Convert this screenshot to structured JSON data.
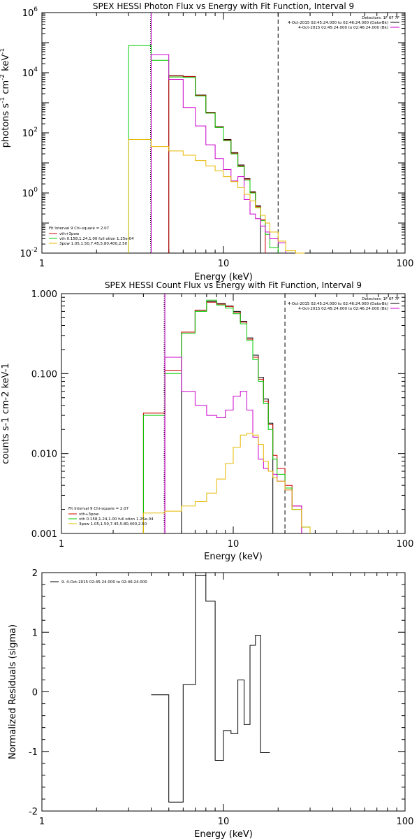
{
  "chart_data": [
    {
      "type": "line",
      "title": "SPEX HESSI Photon Flux vs Energy with Fit Function, Interval 9",
      "xlabel": "Energy (keV)",
      "ylabel_base": "photons s",
      "ylabel_exp1": "-1",
      "ylabel_mid": " cm",
      "ylabel_exp2": "-2",
      "ylabel_end": " keV",
      "ylabel_exp3": "-1",
      "xscale": "log",
      "yscale": "log",
      "xlim": [
        1,
        100
      ],
      "ylim": [
        0.01,
        1000000
      ],
      "xtick_labels": [
        {
          "v": 1,
          "t": "1"
        },
        {
          "v": 10,
          "t": "10"
        },
        {
          "v": 100,
          "t": "100"
        }
      ],
      "ytick_labels": [
        {
          "v": 0.01,
          "base": "10",
          "exp": "-2"
        },
        {
          "v": 1,
          "base": "10",
          "exp": "0"
        },
        {
          "v": 100,
          "base": "10",
          "exp": "2"
        },
        {
          "v": 10000,
          "base": "10",
          "exp": "4"
        },
        {
          "v": 1000000,
          "base": "10",
          "exp": "6"
        }
      ],
      "vlines": [
        {
          "x": 4,
          "style": "dotted"
        },
        {
          "x": 4,
          "style": "solid",
          "color": "#cc00cc"
        },
        {
          "x": 20,
          "style": "dashed"
        }
      ],
      "legend_tr": {
        "line1": "Detectors: 1F 6F 7F",
        "line2": "4-Oct-2015 02:45:24.000 to 02:46:24.000 (Data-Bk)",
        "line3": "4-Oct-2015 02:45:24.000 to 02:46:24.000 (Bk)",
        "colors": [
          "#000000",
          "#cc00cc"
        ]
      },
      "legend_bl": {
        "header": "Fit Interval 9   Chi-square = 2.07",
        "items": [
          {
            "label": "vth+3pow",
            "color": "#cc0000"
          },
          {
            "label": "vth 0.158,1.24,1.00  full otion 1.25e-04",
            "color": "#00cc00"
          },
          {
            "label": "3pow 1.05,1.50,7.45,5.80,400,2.50",
            "color": "#e6b800"
          }
        ]
      },
      "edges": [
        3,
        4,
        5,
        6,
        7,
        8,
        9,
        10,
        11,
        12,
        13,
        14,
        15,
        16,
        17,
        18,
        20,
        22,
        25,
        28
      ],
      "series": [
        {
          "color": "#000000",
          "values": [
            null,
            null,
            8000,
            7500,
            1800,
            480,
            160,
            60,
            22,
            8.5,
            3.0,
            1.1,
            0.38,
            null,
            null,
            null,
            null,
            null,
            null
          ]
        },
        {
          "color": "#cc0000",
          "values": [
            null,
            null,
            7800,
            7400,
            1750,
            470,
            155,
            58,
            21,
            8.0,
            2.9,
            1.05,
            0.35,
            0.13,
            null,
            null,
            null,
            null,
            null
          ]
        },
        {
          "color": "#00cc00",
          "values": [
            80000,
            26000,
            7200,
            7000,
            1700,
            450,
            150,
            55,
            20,
            7.5,
            2.7,
            1.0,
            0.33,
            0.12,
            0.042,
            0.015,
            null,
            null,
            null
          ]
        },
        {
          "color": "#cc00cc",
          "values": [
            null,
            40000,
            6000,
            700,
            170,
            40,
            14,
            6,
            2.5,
            3.5,
            0.6,
            0.2,
            0.14,
            0.08,
            0.05,
            0.03,
            0.022,
            null,
            null
          ]
        },
        {
          "color": "#e6b800",
          "values": [
            60,
            35,
            25,
            18,
            12,
            8,
            5.5,
            3.5,
            2.4,
            1.5,
            0.9,
            0.55,
            0.32,
            0.18,
            0.1,
            0.05,
            0.025,
            0.012,
            0.008
          ]
        }
      ]
    },
    {
      "type": "line",
      "title": "SPEX HESSI Count Flux vs Energy with Fit Function, Interval 9",
      "xlabel": "Energy (keV)",
      "ylabel": "counts s-1 cm-2 keV-1",
      "xscale": "log",
      "yscale": "log",
      "xlim": [
        1,
        100
      ],
      "ylim": [
        0.001,
        1.0
      ],
      "xtick_labels": [
        {
          "v": 1,
          "t": "1"
        },
        {
          "v": 10,
          "t": "10"
        },
        {
          "v": 100,
          "t": "100"
        }
      ],
      "ytick_labels": [
        {
          "v": 0.001,
          "t": "0.001"
        },
        {
          "v": 0.01,
          "t": "0.010"
        },
        {
          "v": 0.1,
          "t": "0.100"
        },
        {
          "v": 1.0,
          "t": "1.000"
        }
      ],
      "vlines": [
        {
          "x": 4,
          "style": "dotted"
        },
        {
          "x": 4,
          "style": "solid",
          "color": "#cc00cc"
        },
        {
          "x": 20,
          "style": "dashed"
        }
      ],
      "legend_tr": {
        "line1": "Detectors: 1F 6F 7F",
        "line2": "4-Oct-2015 02:45:24.000 to 02:46:24.000 (Data-Bk)",
        "line3": "4-Oct-2015 02:45:24.000 to 02:46:24.000 (Bk)",
        "colors": [
          "#000000",
          "#cc00cc"
        ]
      },
      "legend_bl": {
        "header": "Fit Interval 9   Chi-square = 2.07",
        "items": [
          {
            "label": "vth+3pow",
            "color": "#cc0000"
          },
          {
            "label": "vth 0.158,1.24,1.00  full otion 1.25e-04",
            "color": "#00cc00"
          },
          {
            "label": "3pow 1.05,1.50,7.45,5.80,400,2.50",
            "color": "#e6b800"
          }
        ]
      },
      "edges": [
        3,
        4,
        5,
        6,
        7,
        8,
        9,
        10,
        11,
        12,
        13,
        14,
        15,
        16,
        17,
        18,
        20,
        22,
        25,
        28
      ],
      "series": [
        {
          "color": "#000000",
          "values": [
            null,
            null,
            0.33,
            0.62,
            0.8,
            0.75,
            0.7,
            0.6,
            0.45,
            0.28,
            0.17,
            0.09,
            0.048,
            0.024,
            null,
            null,
            null,
            null,
            null
          ]
        },
        {
          "color": "#cc0000",
          "values": [
            0.032,
            0.11,
            0.33,
            0.62,
            0.78,
            0.74,
            0.69,
            0.58,
            0.44,
            0.27,
            0.16,
            0.085,
            0.045,
            0.023,
            0.0095,
            0.0065,
            0.004,
            0.0022,
            null
          ]
        },
        {
          "color": "#00cc00",
          "values": [
            0.03,
            0.1,
            0.32,
            0.6,
            0.83,
            0.72,
            0.66,
            0.56,
            0.42,
            0.26,
            0.15,
            0.08,
            0.042,
            0.02,
            0.0085,
            0.0055,
            0.0037,
            0.002,
            0.0012
          ]
        },
        {
          "color": "#cc00cc",
          "values": [
            null,
            0.16,
            0.06,
            0.04,
            0.03,
            0.028,
            0.035,
            0.052,
            0.06,
            0.035,
            0.016,
            0.0085,
            0.0065,
            0.006,
            0.0055,
            0.0045,
            0.0035,
            0.0022,
            null
          ]
        },
        {
          "color": "#e6b800",
          "values": [
            0.0018,
            0.0019,
            0.0022,
            0.0025,
            0.0032,
            0.0048,
            0.0075,
            0.012,
            0.017,
            0.018,
            0.017,
            0.013,
            0.008,
            0.006,
            0.005,
            0.0045,
            0.0035,
            0.002,
            0.0012
          ]
        }
      ]
    },
    {
      "type": "line",
      "xlabel": "Energy (keV)",
      "ylabel": "Normalized Residuals (sigma)",
      "xscale": "log",
      "yscale": "linear",
      "xlim": [
        1,
        100
      ],
      "ylim": [
        -2,
        2
      ],
      "xtick_labels": [
        {
          "v": 1,
          "t": "1"
        },
        {
          "v": 10,
          "t": "10"
        },
        {
          "v": 100,
          "t": "100"
        }
      ],
      "ytick_labels": [
        {
          "v": -2,
          "t": "-2"
        },
        {
          "v": -1,
          "t": "-1"
        },
        {
          "v": 0,
          "t": "0"
        },
        {
          "v": 1,
          "t": "1"
        },
        {
          "v": 2,
          "t": "2"
        }
      ],
      "legend_tl": "9.  4-Oct-2015 02:45:24.000 to 02:46:24.000",
      "edges": [
        4,
        5,
        6,
        7,
        8,
        9,
        10,
        11,
        12,
        13,
        14,
        15,
        16,
        17,
        18,
        20
      ],
      "series": [
        {
          "color": "#000000",
          "values": [
            -0.05,
            -1.85,
            0.12,
            1.95,
            1.52,
            -1.15,
            -0.65,
            -0.7,
            0.2,
            -0.55,
            0.78,
            0.95,
            -1.02,
            -1.02,
            null
          ]
        }
      ]
    }
  ]
}
